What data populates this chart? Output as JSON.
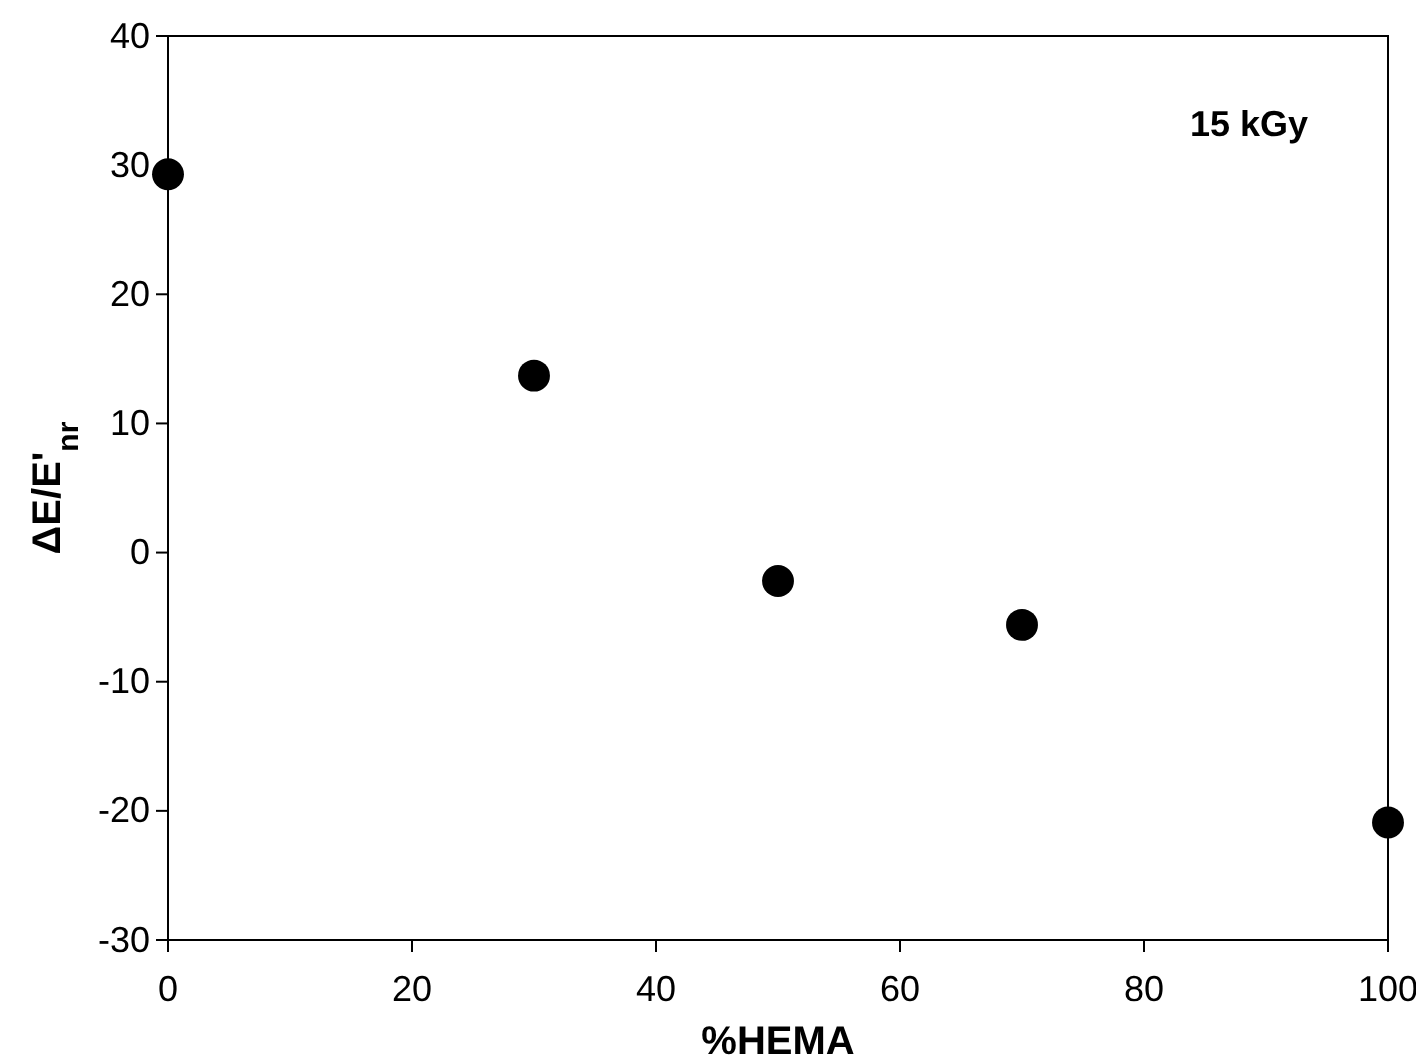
{
  "chart_data": {
    "type": "scatter",
    "xlabel": "%HEMA",
    "ylabel": "ΔE/E'$_{nr}$",
    "annotations": [
      "15 kGy"
    ],
    "x": [
      0,
      30,
      50,
      70,
      100
    ],
    "series": [
      {
        "color": "#000000",
        "values": [
          29.3,
          13.7,
          -2.2,
          -5.6,
          -20.9
        ]
      }
    ],
    "xlim": [
      0,
      100
    ],
    "xticks": [
      0,
      20,
      40,
      60,
      80,
      100
    ],
    "ylim": [
      -30,
      40
    ],
    "yticks": [
      -30,
      -20,
      -10,
      0,
      10,
      20,
      30,
      40
    ],
    "marker": "circle",
    "grid": false
  }
}
